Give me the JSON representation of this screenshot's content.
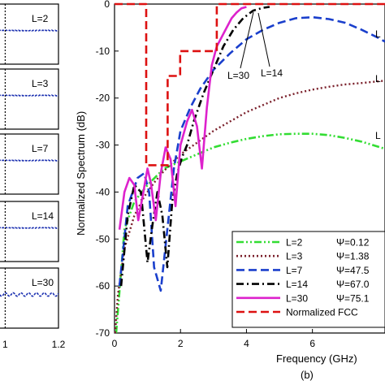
{
  "chart_data": [
    {
      "type": "line",
      "description_panels": "left stacked pulse panels (partially cropped)",
      "panels": [
        {
          "label": "L=2"
        },
        {
          "label": "L=3"
        },
        {
          "label": "L=7"
        },
        {
          "label": "L=14"
        },
        {
          "label": "L=30"
        }
      ],
      "xticks": [
        "1",
        "1.2"
      ],
      "xlim": [
        0.95,
        1.2
      ]
    },
    {
      "type": "line",
      "xlabel": "Frequency (GHz)",
      "ylabel": "Normalized Spectrum (dB)",
      "subfigure_label": "(b)",
      "xlim": [
        0,
        8.2
      ],
      "ylim": [
        -70,
        0
      ],
      "xticks": [
        0,
        2,
        4,
        6
      ],
      "yticks": [
        0,
        -10,
        -20,
        -30,
        -40,
        -50,
        -60,
        -70
      ],
      "annotations": [
        {
          "text": "L=30",
          "x": 3.35,
          "y": -11
        },
        {
          "text": "L=14",
          "x": 4.55,
          "y": -10
        }
      ],
      "right_edge_labels": [
        "L",
        "L",
        "L"
      ],
      "legend": {
        "position": "bottom-right",
        "entries": [
          {
            "name": "L=2",
            "psi": "Ψ=0.12"
          },
          {
            "name": "L=3",
            "psi": "Ψ=1.38"
          },
          {
            "name": "L=7",
            "psi": "Ψ=47.5"
          },
          {
            "name": "L=14",
            "psi": "Ψ=67.0"
          },
          {
            "name": "L=30",
            "psi": "Ψ=75.1"
          },
          {
            "name": "Normalized FCC",
            "psi": ""
          }
        ]
      },
      "series": [
        {
          "name": "L=2",
          "color": "#33dd33",
          "style": "dash-dot-dot",
          "x": [
            0.05,
            0.3,
            0.6,
            1.0,
            1.5,
            2.0,
            2.5,
            3.0,
            3.5,
            4.0,
            4.5,
            5.0,
            5.5,
            6.0,
            6.5,
            7.0,
            7.5,
            8.2
          ],
          "y": [
            -70,
            -48,
            -42,
            -38.5,
            -35,
            -33.5,
            -32,
            -30.5,
            -29.5,
            -28.7,
            -28.1,
            -27.7,
            -27.6,
            -27.6,
            -27.9,
            -28.5,
            -29.3,
            -30.8
          ]
        },
        {
          "name": "L=3",
          "color": "#7a1f2a",
          "style": "dotted",
          "x": [
            0.02,
            0.1,
            0.3,
            0.6,
            0.9,
            1.2,
            1.5,
            2.0,
            2.5,
            3.0,
            3.5,
            4.0,
            4.5,
            5.0,
            5.5,
            6.0,
            6.5,
            7.0,
            7.5,
            8.2
          ],
          "y": [
            -70,
            -62,
            -52,
            -45,
            -41,
            -38,
            -35.5,
            -32,
            -29.5,
            -27,
            -25,
            -23,
            -21.5,
            -20,
            -19,
            -18.2,
            -17.6,
            -17.1,
            -16.8,
            -16.3
          ]
        },
        {
          "name": "L=7",
          "color": "#1a3fcc",
          "style": "dashed",
          "x": [
            0.15,
            0.4,
            0.7,
            0.9,
            1.05,
            1.2,
            1.4,
            1.6,
            1.8,
            2.0,
            2.3,
            2.6,
            3.0,
            3.5,
            4.0,
            4.5,
            5.0,
            5.5,
            6.0,
            6.5,
            7.0,
            7.5,
            8.0,
            8.2
          ],
          "y": [
            -60,
            -43,
            -37,
            -36,
            -40,
            -56,
            -61,
            -48,
            -35,
            -27,
            -22,
            -18,
            -14,
            -10.5,
            -7.5,
            -5.5,
            -4,
            -3,
            -2.8,
            -3.2,
            -4,
            -5.5,
            -7.2,
            -8
          ]
        },
        {
          "name": "L=14",
          "color": "#000000",
          "style": "dash-dot",
          "x": [
            0.2,
            0.4,
            0.6,
            0.8,
            1.0,
            1.15,
            1.3,
            1.45,
            1.6,
            1.75,
            1.9,
            2.05,
            2.2,
            2.4,
            2.7,
            3.0,
            3.3,
            3.6,
            3.9,
            4.2,
            4.5,
            4.7
          ],
          "y": [
            -60,
            -45,
            -38.5,
            -40,
            -55,
            -47,
            -40,
            -45,
            -56,
            -42,
            -36,
            -32.5,
            -30,
            -25,
            -19,
            -14,
            -9,
            -5.5,
            -3,
            -1.4,
            -0.8,
            -0.6
          ]
        },
        {
          "name": "L=30",
          "color": "#dd22cc",
          "style": "solid",
          "x": [
            0.15,
            0.3,
            0.45,
            0.6,
            0.72,
            0.85,
            1.0,
            1.1,
            1.25,
            1.4,
            1.55,
            1.7,
            1.85,
            2.0,
            2.2,
            2.35,
            2.5,
            2.65,
            2.8,
            2.95,
            3.1,
            3.25,
            3.4,
            3.55,
            3.7,
            3.85,
            4.0
          ],
          "y": [
            -48,
            -40,
            -37,
            -38.5,
            -46,
            -41,
            -35,
            -38,
            -46,
            -36,
            -30.5,
            -33,
            -43,
            -30,
            -25,
            -22.5,
            -26,
            -35,
            -22,
            -13,
            -9,
            -7,
            -5,
            -3,
            -1.8,
            -0.9,
            -0.6
          ]
        },
        {
          "name": "Normalized FCC",
          "color": "#dd1111",
          "style": "dashed",
          "x": [
            0,
            0.96,
            0.96,
            1.61,
            1.61,
            1.99,
            1.99,
            3.1,
            3.1,
            8.2
          ],
          "y": [
            0,
            0,
            -34.3,
            -34.3,
            -15.3,
            -15.3,
            -10,
            -10,
            0,
            0
          ]
        }
      ]
    }
  ]
}
